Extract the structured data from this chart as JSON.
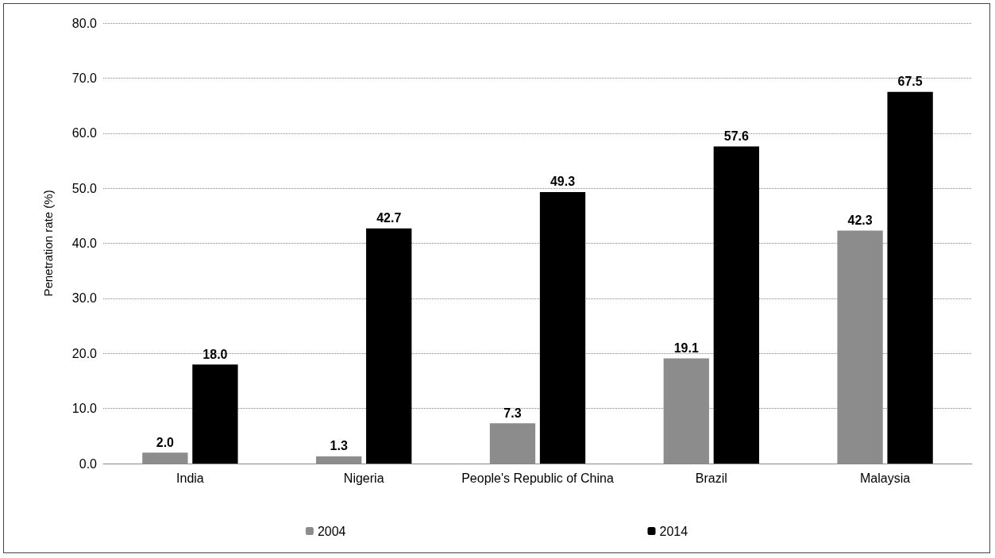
{
  "chart_data": {
    "type": "bar",
    "ylabel": "Penetration rate (%)",
    "categories": [
      "India",
      "Nigeria",
      "People's Republic of China",
      "Brazil",
      "Malaysia"
    ],
    "series": [
      {
        "name": "2004",
        "color": "#8c8c8c",
        "values": [
          2.0,
          1.3,
          7.3,
          19.1,
          42.3
        ],
        "value_labels": [
          "2.0",
          "1.3",
          "7.3",
          "19.1",
          "42.3"
        ]
      },
      {
        "name": "2014",
        "color": "#000000",
        "values": [
          18.0,
          42.7,
          49.3,
          57.6,
          67.5
        ],
        "value_labels": [
          "18.0",
          "42.7",
          "49.3",
          "57.6",
          "67.5"
        ]
      }
    ],
    "ylim": [
      0,
      80
    ],
    "yticks": [
      {
        "value": 0,
        "label": "0.0"
      },
      {
        "value": 10,
        "label": "10.0"
      },
      {
        "value": 20,
        "label": "20.0"
      },
      {
        "value": 30,
        "label": "30.0"
      },
      {
        "value": 40,
        "label": "40.0"
      },
      {
        "value": 50,
        "label": "50.0"
      },
      {
        "value": 60,
        "label": "60.0"
      },
      {
        "value": 70,
        "label": "70.0"
      },
      {
        "value": 80,
        "label": "80.0"
      }
    ],
    "grid": "y",
    "legend": "bottom"
  }
}
